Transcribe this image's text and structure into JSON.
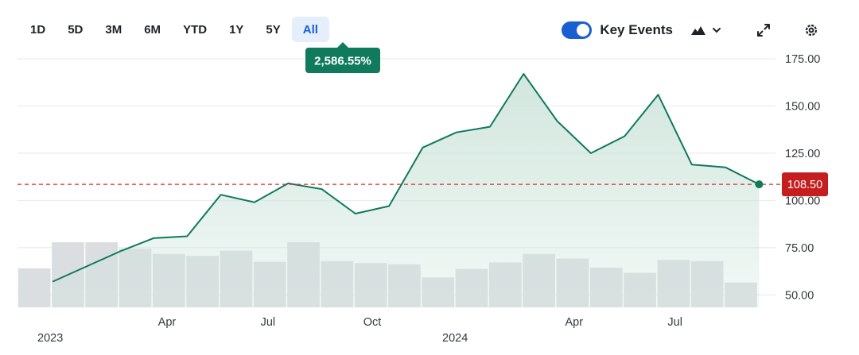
{
  "ranges": [
    {
      "label": "1D",
      "active": false
    },
    {
      "label": "5D",
      "active": false
    },
    {
      "label": "3M",
      "active": false
    },
    {
      "label": "6M",
      "active": false
    },
    {
      "label": "YTD",
      "active": false
    },
    {
      "label": "1Y",
      "active": false
    },
    {
      "label": "5Y",
      "active": false
    },
    {
      "label": "All",
      "active": true
    }
  ],
  "toolbar": {
    "key_events_label": "Key Events",
    "key_events_on": true,
    "chart_type_icon": "mountain-chart-icon",
    "expand_icon": "expand-icon",
    "settings_icon": "gear-icon"
  },
  "colors": {
    "line": "#0f7a5c",
    "area_top": "#cfe5dc",
    "volume": "#d9dcdf",
    "reference": "#d32f2f",
    "accent": "#1a5fd1",
    "tooltip": "#0f7a5c"
  },
  "chart_data": {
    "type": "area",
    "tooltip": "2,586.55%",
    "current_price_label": "108.50",
    "reference_value": 108.5,
    "y_ticks": [
      "175.00",
      "150.00",
      "125.00",
      "100.00",
      "75.00",
      "50.00"
    ],
    "y_tick_values": [
      175,
      150,
      125,
      100,
      75,
      50
    ],
    "ylim": [
      43,
      183
    ],
    "x_tick_labels": [
      {
        "label": "2023",
        "month_index": 0
      },
      {
        "label": "Apr",
        "month_index": 3.9
      },
      {
        "label": "Jul",
        "month_index": 6.9
      },
      {
        "label": "Oct",
        "month_index": 10.0
      },
      {
        "label": "2024",
        "month_index": 12.4
      },
      {
        "label": "Apr",
        "month_index": 16.0
      },
      {
        "label": "Jul",
        "month_index": 19.0
      }
    ],
    "price_series": [
      {
        "m": 0.5,
        "v": 57
      },
      {
        "m": 2.5,
        "v": 73
      },
      {
        "m": 3.5,
        "v": 80
      },
      {
        "m": 4.5,
        "v": 81
      },
      {
        "m": 5.5,
        "v": 103
      },
      {
        "m": 6.5,
        "v": 99
      },
      {
        "m": 7.5,
        "v": 109
      },
      {
        "m": 8.5,
        "v": 106
      },
      {
        "m": 9.5,
        "v": 93
      },
      {
        "m": 10.5,
        "v": 97
      },
      {
        "m": 11.5,
        "v": 128
      },
      {
        "m": 12.5,
        "v": 136
      },
      {
        "m": 13.5,
        "v": 139
      },
      {
        "m": 14.5,
        "v": 167
      },
      {
        "m": 15.5,
        "v": 142
      },
      {
        "m": 16.5,
        "v": 125
      },
      {
        "m": 17.5,
        "v": 134
      },
      {
        "m": 18.5,
        "v": 156
      },
      {
        "m": 19.5,
        "v": 119
      },
      {
        "m": 20.5,
        "v": 117.5
      },
      {
        "m": 21.5,
        "v": 108.5
      }
    ],
    "volume_bars": [
      0.6,
      1.0,
      1.0,
      0.9,
      0.82,
      0.79,
      0.87,
      0.7,
      1.0,
      0.71,
      0.68,
      0.66,
      0.46,
      0.59,
      0.69,
      0.82,
      0.75,
      0.61,
      0.53,
      0.73,
      0.71,
      0.38
    ]
  }
}
